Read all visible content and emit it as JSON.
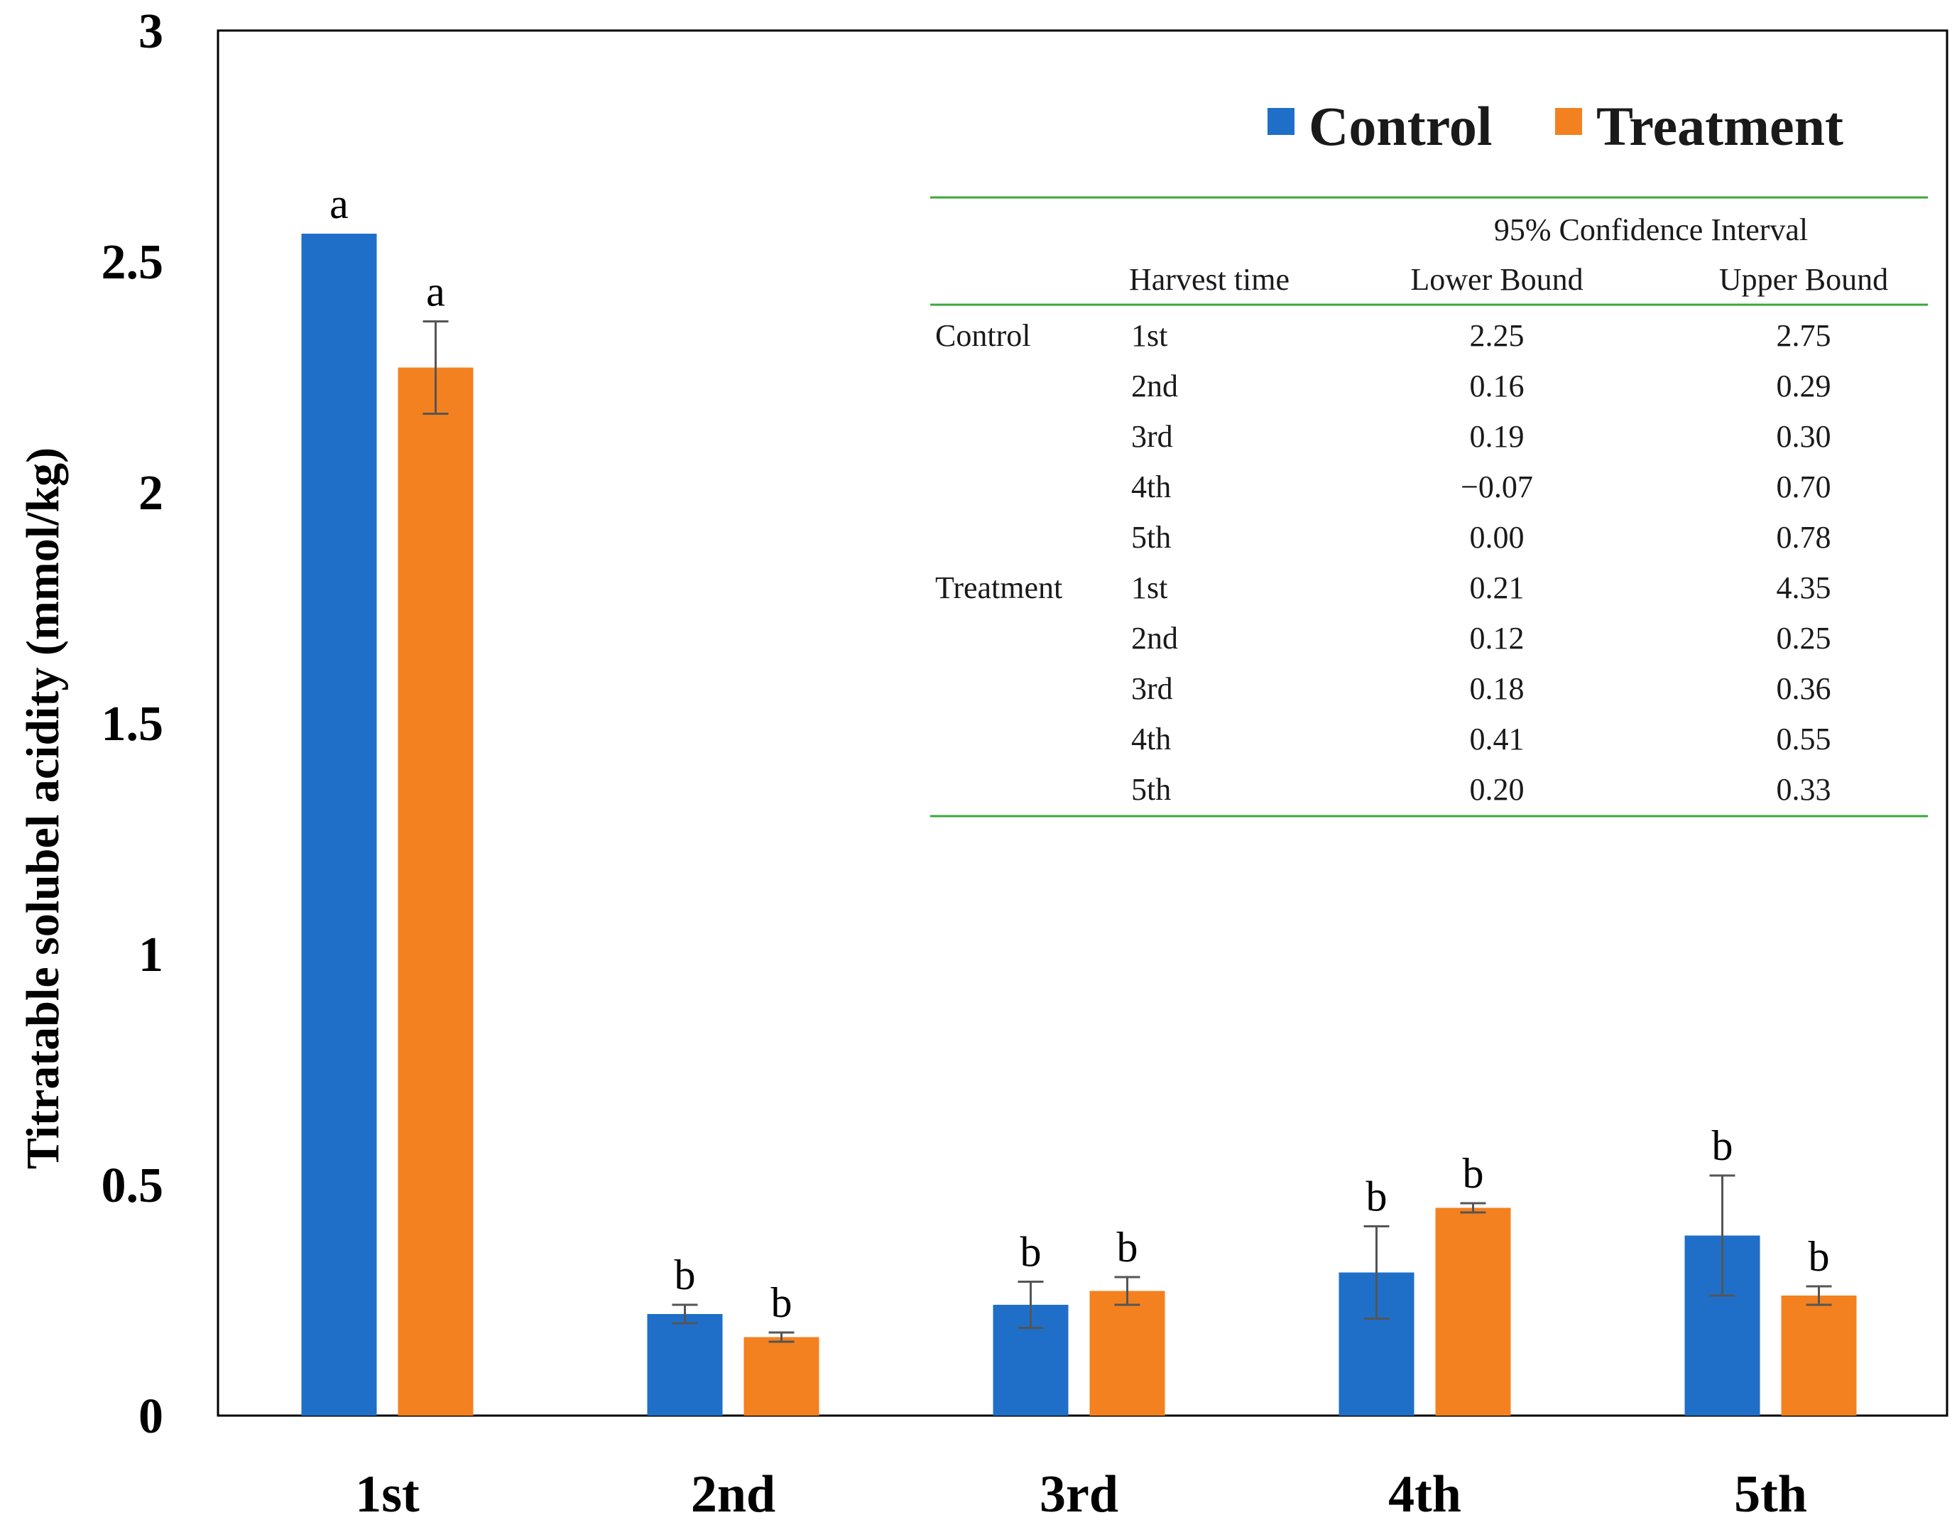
{
  "chart_data": {
    "type": "bar",
    "categories": [
      "1st",
      "2nd",
      "3rd",
      "4th",
      "5th"
    ],
    "ylabel": "Titratable solubel acidity (mmol/kg)",
    "xlabel": "",
    "ylim": [
      0,
      3
    ],
    "yticks": [
      "0",
      "0.5",
      "1",
      "1.5",
      "2",
      "2.5",
      "3"
    ],
    "grid": false,
    "legend_position": "top-right",
    "series": [
      {
        "name": "Control",
        "color": "#1f6fc9",
        "values": [
          2.56,
          0.22,
          0.24,
          0.31,
          0.39
        ],
        "errors": [
          0.0,
          0.02,
          0.05,
          0.1,
          0.13
        ],
        "letters": [
          "a",
          "b",
          "b",
          "b",
          "b"
        ]
      },
      {
        "name": "Treatment",
        "color": "#f4811f",
        "values": [
          2.27,
          0.17,
          0.27,
          0.45,
          0.26
        ],
        "errors": [
          0.1,
          0.01,
          0.03,
          0.01,
          0.02
        ],
        "letters": [
          "a",
          "b",
          "b",
          "b",
          "b"
        ]
      }
    ],
    "inset_table": {
      "title": "95% Confidence Interval",
      "columns": [
        "Harvest time",
        "Lower Bound",
        "Upper Bound"
      ],
      "groups": [
        {
          "name": "Control",
          "rows": [
            {
              "time": "1st",
              "lower": "2.25",
              "upper": "2.75"
            },
            {
              "time": "2nd",
              "lower": "0.16",
              "upper": "0.29"
            },
            {
              "time": "3rd",
              "lower": "0.19",
              "upper": "0.30"
            },
            {
              "time": "4th",
              "lower": "−0.07",
              "upper": "0.70"
            },
            {
              "time": "5th",
              "lower": "0.00",
              "upper": "0.78"
            }
          ]
        },
        {
          "name": "Treatment",
          "rows": [
            {
              "time": "1st",
              "lower": "0.21",
              "upper": "4.35"
            },
            {
              "time": "2nd",
              "lower": "0.12",
              "upper": "0.25"
            },
            {
              "time": "3rd",
              "lower": "0.18",
              "upper": "0.36"
            },
            {
              "time": "4th",
              "lower": "0.41",
              "upper": "0.55"
            },
            {
              "time": "5th",
              "lower": "0.20",
              "upper": "0.33"
            }
          ]
        }
      ]
    }
  }
}
